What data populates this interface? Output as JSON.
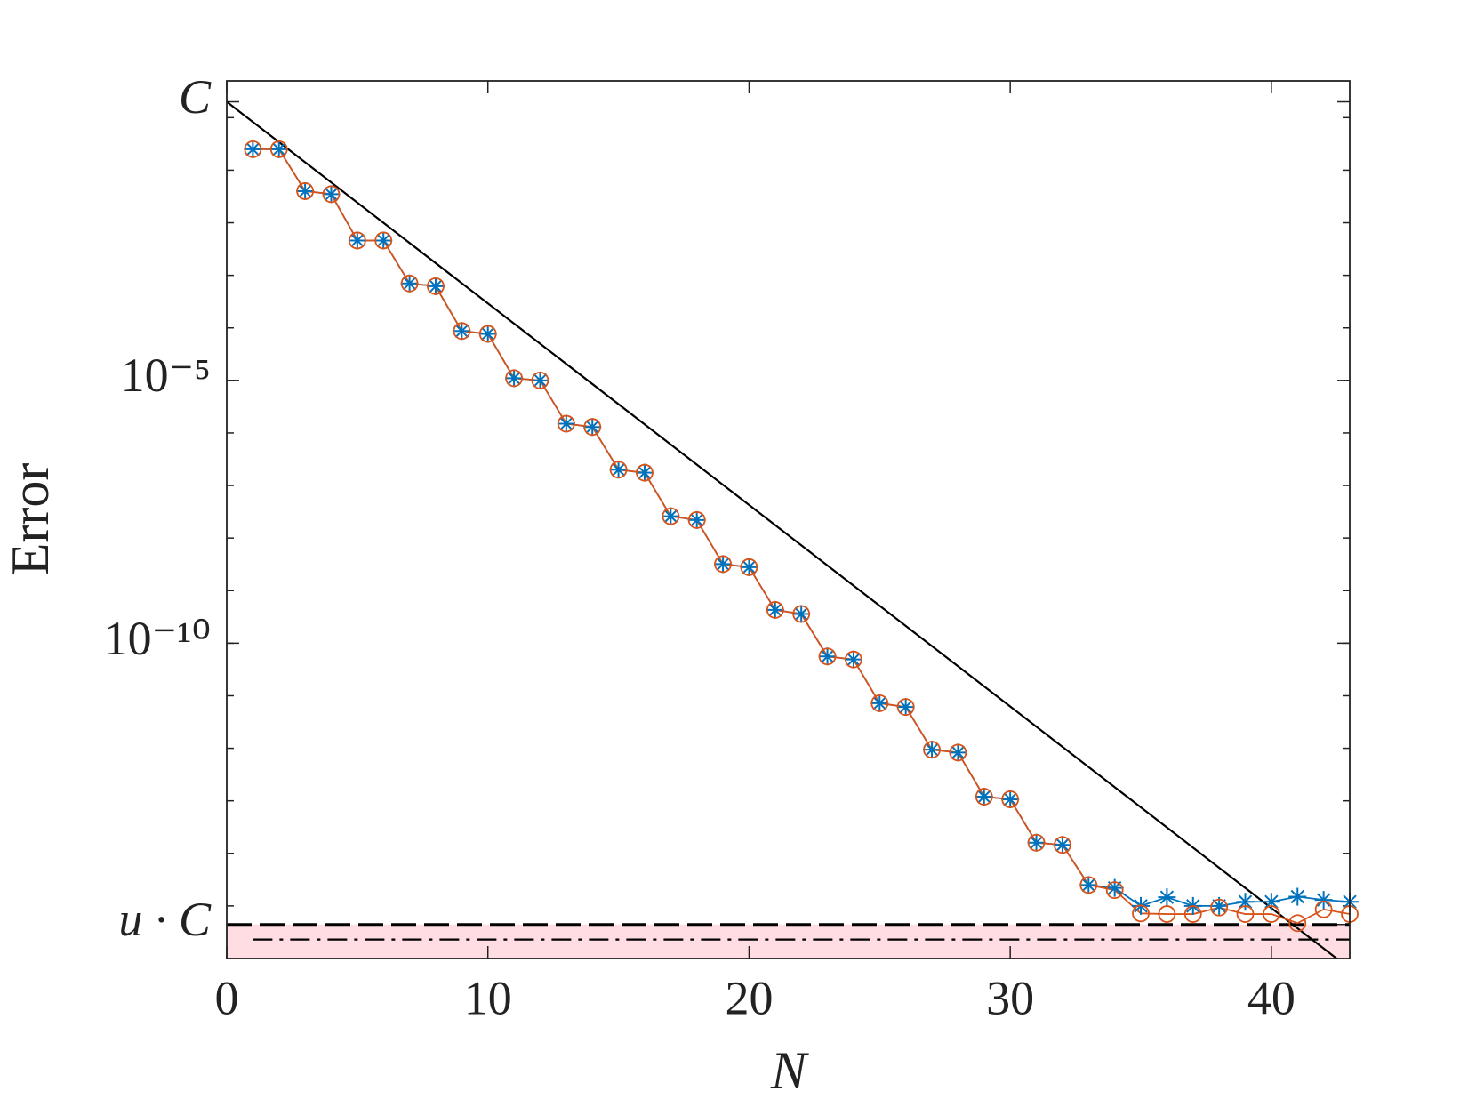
{
  "chart_data": {
    "type": "line",
    "xlabel": "N",
    "ylabel": "Error",
    "xlim": [
      0,
      43
    ],
    "xticks": [
      0,
      10,
      20,
      30,
      40
    ],
    "ylim": [
      1e-16,
      5
    ],
    "ylog": true,
    "yticks": [
      {
        "value": 2,
        "label": "C"
      },
      {
        "value": 1e-05,
        "label": "10⁻⁵"
      },
      {
        "value": 1e-10,
        "label": "10⁻¹⁰"
      },
      {
        "value": 4.44e-16,
        "label": "u · C"
      }
    ],
    "yminorticks": [
      1,
      0.1,
      0.01,
      0.001,
      0.0001,
      1e-05,
      1e-06,
      1e-07,
      1e-08,
      1e-09,
      1e-10,
      1e-11,
      1e-12,
      1e-13,
      1e-14,
      1e-15
    ],
    "x": [
      1,
      2,
      3,
      4,
      5,
      6,
      7,
      8,
      9,
      10,
      11,
      12,
      13,
      14,
      15,
      16,
      17,
      18,
      19,
      20,
      21,
      22,
      23,
      24,
      25,
      26,
      27,
      28,
      29,
      30,
      31,
      32,
      33,
      34,
      35,
      36,
      37,
      38,
      39,
      40,
      41,
      42,
      43
    ],
    "series": [
      {
        "color": "#0072bd",
        "marker": "asterisk",
        "values": [
          0.25,
          0.25,
          0.04,
          0.035,
          0.0046,
          0.0046,
          0.0007,
          0.00062,
          8.7e-05,
          7.7e-05,
          1.1e-05,
          1e-05,
          1.5e-06,
          1.3e-06,
          2e-07,
          1.75e-07,
          2.6e-08,
          2.2e-08,
          3.2e-09,
          2.8e-09,
          4.3e-10,
          3.6e-10,
          5.6e-11,
          4.9e-11,
          7.2e-12,
          6.1e-12,
          9.4e-13,
          8.3e-13,
          1.2e-13,
          1.07e-13,
          1.6e-14,
          1.45e-14,
          2.5e-15,
          2.2e-15,
          1e-15,
          1.46e-15,
          1e-15,
          1e-15,
          1.2e-15,
          1.2e-15,
          1.5e-15,
          1.3e-15,
          1.2e-15
        ]
      },
      {
        "color": "#d95319",
        "marker": "circle",
        "values": [
          0.25,
          0.25,
          0.04,
          0.035,
          0.0046,
          0.0046,
          0.0007,
          0.00062,
          8.7e-05,
          7.7e-05,
          1.1e-05,
          1e-05,
          1.5e-06,
          1.3e-06,
          2e-07,
          1.75e-07,
          2.6e-08,
          2.2e-08,
          3.2e-09,
          2.8e-09,
          4.3e-10,
          3.6e-10,
          5.6e-11,
          4.9e-11,
          7.2e-12,
          6.1e-12,
          9.4e-13,
          8.3e-13,
          1.2e-13,
          1.07e-13,
          1.6e-14,
          1.45e-14,
          2.5e-15,
          2e-15,
          7.2e-16,
          7e-16,
          7e-16,
          9.3e-16,
          7e-16,
          7e-16,
          4.7e-16,
          8.6e-16,
          7e-16
        ]
      }
    ],
    "shaded_band": {
      "from": 1e-16,
      "to": 4.44e-16,
      "color": "#ffdde3"
    },
    "reference_lines": [
      {
        "x": [
          0,
          42.5
        ],
        "values": [
          2,
          1e-16
        ],
        "color": "#000000",
        "style": "solid"
      },
      {
        "x": [
          0,
          43
        ],
        "values": [
          4.44e-16,
          4.44e-16
        ],
        "color": "#000000",
        "style": "dashed"
      },
      {
        "x": [
          1,
          43
        ],
        "values": [
          2.3e-16,
          2.3e-16
        ],
        "color": "#000000",
        "style": "dashdot"
      }
    ]
  }
}
